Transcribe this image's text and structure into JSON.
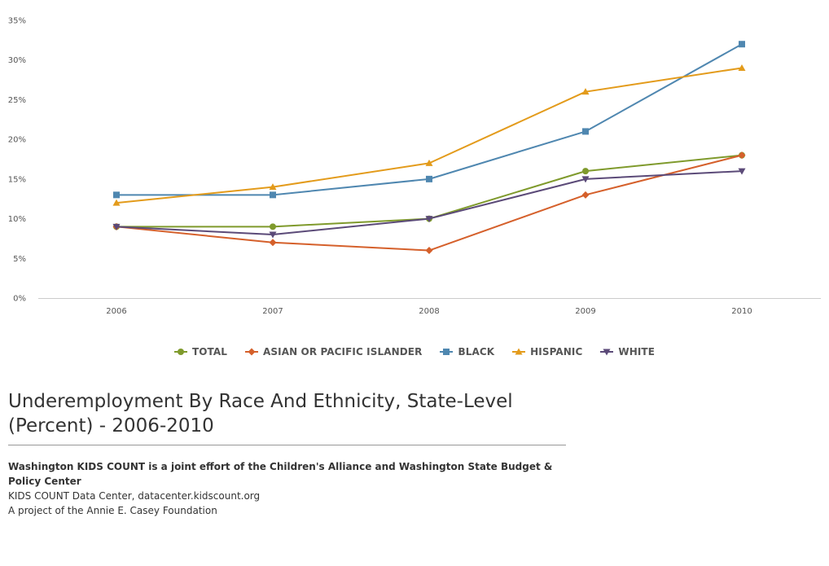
{
  "chart_data": {
    "type": "line",
    "title": "Underemployment By Race And Ethnicity, State-Level (Percent) - 2006-2010",
    "x": [
      "2006",
      "2007",
      "2008",
      "2009",
      "2010"
    ],
    "yticks": [
      "0%",
      "5%",
      "10%",
      "15%",
      "20%",
      "25%",
      "30%",
      "35%"
    ],
    "ylim": [
      0,
      35
    ],
    "grid": "horizontal-baseline-only",
    "legend_position": "bottom-center",
    "series": [
      {
        "name": "TOTAL",
        "color": "#7f9a2c",
        "marker": "circle",
        "values": [
          9,
          9,
          10,
          16,
          18
        ]
      },
      {
        "name": "ASIAN OR PACIFIC ISLANDER",
        "color": "#d5602b",
        "marker": "diamond",
        "values": [
          9,
          7,
          6,
          13,
          18
        ]
      },
      {
        "name": "BLACK",
        "color": "#4f87b0",
        "marker": "square",
        "values": [
          13,
          13,
          15,
          21,
          32
        ]
      },
      {
        "name": "HISPANIC",
        "color": "#e39b1b",
        "marker": "triangle",
        "values": [
          12,
          14,
          17,
          26,
          29
        ]
      },
      {
        "name": "WHITE",
        "color": "#5b4a78",
        "marker": "triangle-down",
        "values": [
          9,
          8,
          10,
          15,
          16
        ]
      }
    ]
  },
  "source": {
    "line1": "Washington KIDS COUNT is a joint effort of the Children's Alliance and Washington State Budget & Policy Center",
    "line2": "KIDS COUNT Data Center, datacenter.kidscount.org",
    "line3": "A project of the Annie E. Casey Foundation"
  }
}
